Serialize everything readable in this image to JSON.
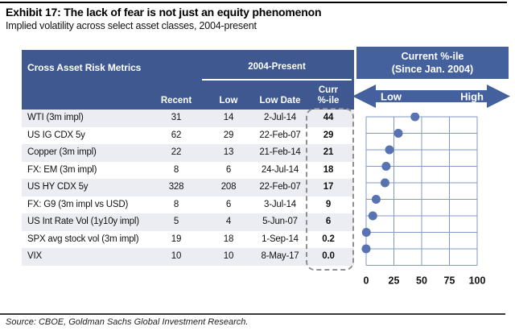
{
  "title": "Exhibit 17: The lack of fear is not just an equity phenomenon",
  "subtitle": "Implied volatility across select asset classes, 2004-present",
  "table": {
    "corner_label": "Cross Asset Risk Metrics",
    "span_header": "2004-Present",
    "columns": {
      "recent": "Recent",
      "low": "Low",
      "low_date": "Low Date",
      "curr_line1": "Curr",
      "curr_line2": "%-ile"
    },
    "rows": [
      {
        "label": "WTI (3m impl)",
        "recent": "31",
        "low": "14",
        "low_date": "2-Jul-14",
        "curr_pct": "44"
      },
      {
        "label": "US IG CDX 5y",
        "recent": "62",
        "low": "29",
        "low_date": "22-Feb-07",
        "curr_pct": "29"
      },
      {
        "label": "Copper (3m impl)",
        "recent": "22",
        "low": "13",
        "low_date": "21-Feb-14",
        "curr_pct": "21"
      },
      {
        "label": "FX: EM (3m impl)",
        "recent": "8",
        "low": "6",
        "low_date": "24-Jul-14",
        "curr_pct": "18"
      },
      {
        "label": "US HY CDX 5y",
        "recent": "328",
        "low": "208",
        "low_date": "22-Feb-07",
        "curr_pct": "17"
      },
      {
        "label": "FX: G9 (3m impl vs USD)",
        "recent": "8",
        "low": "6",
        "low_date": "3-Jul-14",
        "curr_pct": "9"
      },
      {
        "label": "US Int Rate Vol (1y10y impl)",
        "recent": "5",
        "low": "4",
        "low_date": "5-Jun-07",
        "curr_pct": "6"
      },
      {
        "label": "SPX avg stock vol (3m impl)",
        "recent": "19",
        "low": "18",
        "low_date": "1-Sep-14",
        "curr_pct": "0.2"
      },
      {
        "label": "VIX",
        "recent": "10",
        "low": "10",
        "low_date": "8-May-17",
        "curr_pct": "0.0"
      }
    ]
  },
  "panel": {
    "header_line1": "Current %-ile",
    "header_line2": "(Since Jan. 2004)",
    "arrow_left_label": "Low",
    "arrow_right_label": "High"
  },
  "chart_data": {
    "type": "scatter",
    "title": "Current %-ile (Since Jan. 2004)",
    "categories": [
      "WTI (3m impl)",
      "US IG CDX 5y",
      "Copper (3m impl)",
      "FX: EM (3m impl)",
      "US HY CDX 5y",
      "FX: G9 (3m impl vs USD)",
      "US Int Rate Vol (1y10y impl)",
      "SPX avg stock vol (3m impl)",
      "VIX"
    ],
    "values": [
      44,
      29,
      21,
      18,
      17,
      9,
      6,
      0.2,
      0.0
    ],
    "x_ticks": [
      0,
      25,
      50,
      75,
      100
    ],
    "xlim": [
      0,
      100
    ],
    "xlabel": "",
    "ylabel": "",
    "grid": true,
    "legend": "none",
    "dot_color": "#5773b1",
    "grid_color": "#8497c9"
  },
  "source": "Source: CBOE, Goldman Sachs Global Investment Research.",
  "colors": {
    "header_bg": "#3f5990",
    "panel_bg": "#44619e",
    "row_alt": "#ebedf3",
    "dashed_border": "#8f8f8f",
    "rule": "#000000"
  }
}
